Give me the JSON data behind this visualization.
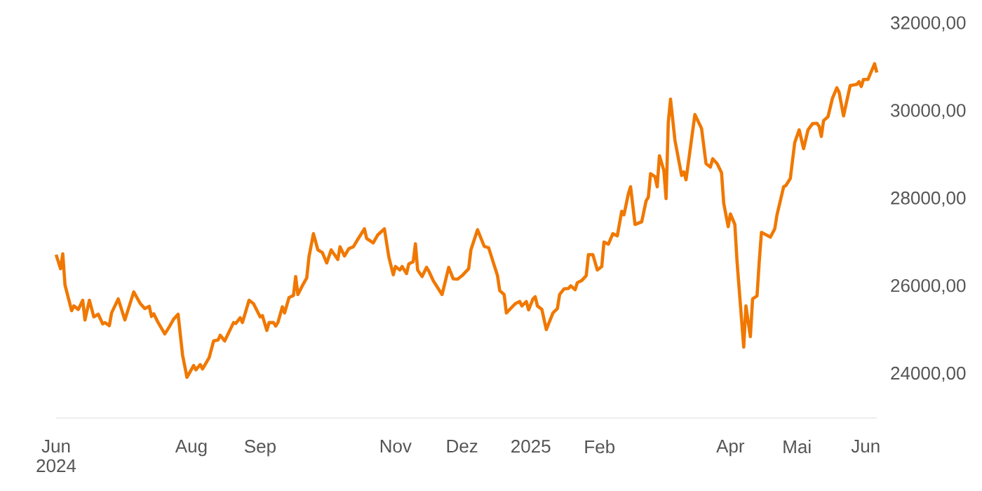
{
  "chart_data": {
    "type": "line",
    "x": [
      "2024-06-01",
      "2024-06-03",
      "2024-06-04",
      "2024-06-05",
      "2024-06-08",
      "2024-06-09",
      "2024-06-11",
      "2024-06-13",
      "2024-06-14",
      "2024-06-16",
      "2024-06-18",
      "2024-06-20",
      "2024-06-22",
      "2024-06-23",
      "2024-06-25",
      "2024-06-26",
      "2024-06-29",
      "2024-07-02",
      "2024-07-06",
      "2024-07-09",
      "2024-07-11",
      "2024-07-13",
      "2024-07-14",
      "2024-07-15",
      "2024-07-17",
      "2024-07-20",
      "2024-07-22",
      "2024-07-24",
      "2024-07-26",
      "2024-07-28",
      "2024-07-30",
      "2024-08-02",
      "2024-08-03",
      "2024-08-05",
      "2024-08-06",
      "2024-08-09",
      "2024-08-11",
      "2024-08-13",
      "2024-08-14",
      "2024-08-16",
      "2024-08-18",
      "2024-08-20",
      "2024-08-21",
      "2024-08-23",
      "2024-08-24",
      "2024-08-27",
      "2024-08-29",
      "2024-09-01",
      "2024-09-02",
      "2024-09-04",
      "2024-09-05",
      "2024-09-07",
      "2024-09-08",
      "2024-09-09",
      "2024-09-11",
      "2024-09-12",
      "2024-09-14",
      "2024-09-16",
      "2024-09-17",
      "2024-09-18",
      "2024-09-20",
      "2024-09-22",
      "2024-09-23",
      "2024-09-25",
      "2024-09-27",
      "2024-09-29",
      "2024-10-01",
      "2024-10-03",
      "2024-10-06",
      "2024-10-07",
      "2024-10-09",
      "2024-10-11",
      "2024-10-13",
      "2024-10-15",
      "2024-10-18",
      "2024-10-19",
      "2024-10-22",
      "2024-10-24",
      "2024-10-27",
      "2024-10-29",
      "2024-10-31",
      "2024-11-01",
      "2024-11-03",
      "2024-11-04",
      "2024-11-06",
      "2024-11-07",
      "2024-11-09",
      "2024-11-10",
      "2024-11-11",
      "2024-11-13",
      "2024-11-15",
      "2024-11-16",
      "2024-11-18",
      "2024-11-22",
      "2024-11-25",
      "2024-11-27",
      "2024-11-29",
      "2024-12-01",
      "2024-12-04",
      "2024-12-05",
      "2024-12-08",
      "2024-12-11",
      "2024-12-13",
      "2024-12-15",
      "2024-12-17",
      "2024-12-18",
      "2024-12-20",
      "2024-12-21",
      "2024-12-25",
      "2024-12-27",
      "2024-12-28",
      "2024-12-30",
      "2024-12-31",
      "2025-01-02",
      "2025-01-03",
      "2025-01-04",
      "2025-01-06",
      "2025-01-08",
      "2025-01-11",
      "2025-01-13",
      "2025-01-14",
      "2025-01-16",
      "2025-01-18",
      "2025-01-19",
      "2025-01-21",
      "2025-01-22",
      "2025-01-24",
      "2025-01-26",
      "2025-01-27",
      "2025-01-29",
      "2025-01-31",
      "2025-02-02",
      "2025-02-03",
      "2025-02-05",
      "2025-02-07",
      "2025-02-09",
      "2025-02-11",
      "2025-02-12",
      "2025-02-14",
      "2025-02-15",
      "2025-02-17",
      "2025-02-20",
      "2025-02-22",
      "2025-02-23",
      "2025-02-24",
      "2025-02-26",
      "2025-02-27",
      "2025-02-28",
      "2025-03-02",
      "2025-03-03",
      "2025-03-04",
      "2025-03-05",
      "2025-03-07",
      "2025-03-10",
      "2025-03-11",
      "2025-03-12",
      "2025-03-15",
      "2025-03-16",
      "2025-03-19",
      "2025-03-21",
      "2025-03-23",
      "2025-03-24",
      "2025-03-26",
      "2025-03-28",
      "2025-03-29",
      "2025-03-31",
      "2025-04-01",
      "2025-04-03",
      "2025-04-04",
      "2025-04-07",
      "2025-04-08",
      "2025-04-10",
      "2025-04-11",
      "2025-04-13",
      "2025-04-14",
      "2025-04-15",
      "2025-04-18",
      "2025-04-19",
      "2025-04-21",
      "2025-04-22",
      "2025-04-23",
      "2025-04-25",
      "2025-04-26",
      "2025-04-28",
      "2025-04-30",
      "2025-05-02",
      "2025-05-04",
      "2025-05-06",
      "2025-05-08",
      "2025-05-10",
      "2025-05-11",
      "2025-05-12",
      "2025-05-13",
      "2025-05-15",
      "2025-05-17",
      "2025-05-19",
      "2025-05-20",
      "2025-05-22",
      "2025-05-25",
      "2025-05-28",
      "2025-05-29",
      "2025-05-30",
      "2025-05-31",
      "2025-06-02",
      "2025-06-04",
      "2025-06-05",
      "2025-06-06"
    ],
    "series": [
      {
        "color": "#f07800",
        "values": [
          26730,
          26410,
          26750,
          26040,
          25450,
          25560,
          25480,
          25690,
          25240,
          25690,
          25310,
          25370,
          25150,
          25180,
          25110,
          25400,
          25720,
          25240,
          25880,
          25610,
          25500,
          25550,
          25320,
          25380,
          25180,
          24920,
          25080,
          25260,
          25370,
          24440,
          23930,
          24200,
          24100,
          24220,
          24120,
          24380,
          24760,
          24780,
          24890,
          24760,
          24970,
          25180,
          25160,
          25290,
          25180,
          25690,
          25610,
          25310,
          25340,
          25000,
          25180,
          25180,
          25100,
          25180,
          25540,
          25400,
          25750,
          25800,
          26230,
          25820,
          26020,
          26200,
          26680,
          27210,
          26840,
          26780,
          26540,
          26840,
          26620,
          26910,
          26700,
          26870,
          26910,
          27080,
          27320,
          27100,
          27000,
          27180,
          27320,
          26680,
          26270,
          26460,
          26380,
          26460,
          26300,
          26520,
          26570,
          26980,
          26380,
          26230,
          26440,
          26360,
          26140,
          25820,
          26440,
          26180,
          26170,
          26250,
          26410,
          26840,
          27300,
          26920,
          26890,
          26570,
          26250,
          25910,
          25820,
          25400,
          25610,
          25660,
          25560,
          25660,
          25470,
          25720,
          25770,
          25560,
          25480,
          25020,
          25400,
          25500,
          25820,
          25950,
          25960,
          26020,
          25930,
          26090,
          26140,
          26250,
          26730,
          26730,
          26380,
          26460,
          27020,
          26970,
          27210,
          27160,
          27720,
          27640,
          28120,
          28280,
          27420,
          27480,
          27960,
          28040,
          28580,
          28510,
          28280,
          28990,
          28650,
          28010,
          29750,
          30280,
          29340,
          28540,
          28620,
          28440,
          29560,
          29930,
          29610,
          28810,
          28730,
          28920,
          28810,
          28600,
          27900,
          27370,
          27660,
          27420,
          26570,
          24620,
          25560,
          24860,
          25720,
          25790,
          26570,
          27240,
          27160,
          27130,
          27320,
          27640,
          27850,
          28280,
          28310,
          28470,
          29290,
          29580,
          29150,
          29580,
          29720,
          29730,
          29660,
          29430,
          29790,
          29880,
          30300,
          30540,
          30440,
          29900,
          30590,
          30620,
          30680,
          30570,
          30730,
          30730,
          30970,
          31090,
          30890
        ]
      }
    ],
    "xticks": [
      {
        "value": "2024-06-01",
        "label": "Jun 2024"
      },
      {
        "value": "2024-08-01",
        "label": "Aug"
      },
      {
        "value": "2024-09-01",
        "label": "Sep"
      },
      {
        "value": "2024-11-01",
        "label": "Nov"
      },
      {
        "value": "2024-12-01",
        "label": "Dez"
      },
      {
        "value": "2025-01-01",
        "label": "2025"
      },
      {
        "value": "2025-02-01",
        "label": "Feb"
      },
      {
        "value": "2025-04-01",
        "label": "Apr"
      },
      {
        "value": "2025-05-01",
        "label": "Mai"
      },
      {
        "value": "2025-06-01",
        "label": "Jun"
      }
    ],
    "xlim": [
      "2024-06-01",
      "2025-06-06"
    ],
    "ylim": [
      23000,
      32000
    ],
    "yticks": [
      {
        "value": 24000,
        "label": "24000,00"
      },
      {
        "value": 26000,
        "label": "26000,00"
      },
      {
        "value": 28000,
        "label": "28000,00"
      },
      {
        "value": 30000,
        "label": "30000,00"
      },
      {
        "value": 32000,
        "label": "32000,00"
      }
    ],
    "grid": false,
    "marker": "none",
    "line_style": "solid"
  }
}
